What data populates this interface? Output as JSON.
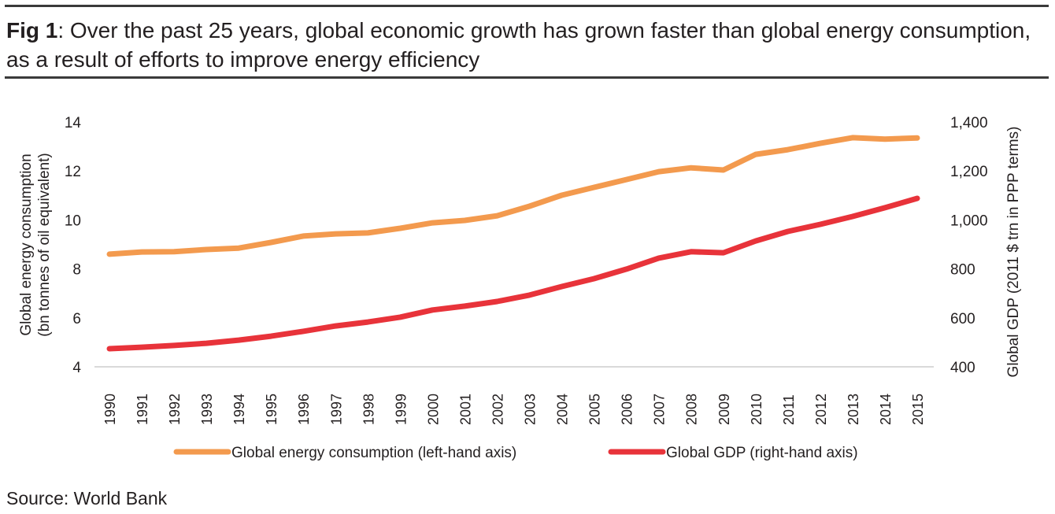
{
  "figure": {
    "label": "Fig 1",
    "title": ": Over the past 25 years, global economic growth has grown faster than global energy consumption, as a result of efforts to improve energy efficiency",
    "source": "Source: World Bank"
  },
  "chart_data": {
    "type": "line",
    "title": "Fig 1: Over the past 25 years, global economic growth has grown faster than global energy consumption, as a result of efforts to improve energy efficiency",
    "xlabel": "",
    "ylabel": "Global energy consumption (bn tonnes of oil equivalent)",
    "y2label": "Global GDP (2011 $ trn in PPP terms)",
    "ylim": [
      4,
      14
    ],
    "y2lim": [
      400,
      1400
    ],
    "yticks": [
      "4",
      "6",
      "8",
      "10",
      "12",
      "14"
    ],
    "y2ticks": [
      "400",
      "600",
      "800",
      "1,000",
      "1,200",
      "1,400"
    ],
    "grid": false,
    "legend_position": "bottom",
    "categories": [
      "1990",
      "1991",
      "1992",
      "1993",
      "1994",
      "1995",
      "1996",
      "1997",
      "1998",
      "1999",
      "2000",
      "2001",
      "2002",
      "2003",
      "2004",
      "2005",
      "2006",
      "2007",
      "2008",
      "2009",
      "2010",
      "2011",
      "2012",
      "2013",
      "2014",
      "2015"
    ],
    "series": [
      {
        "name": "Global energy consumption (left-hand axis)",
        "axis": "left",
        "color": "#f39a4e",
        "values": [
          8.6,
          8.69,
          8.7,
          8.79,
          8.85,
          9.08,
          9.34,
          9.43,
          9.47,
          9.66,
          9.88,
          9.98,
          10.17,
          10.56,
          11.01,
          11.33,
          11.65,
          11.97,
          12.13,
          12.04,
          12.68,
          12.87,
          13.13,
          13.36,
          13.3,
          13.35
        ]
      },
      {
        "name": "Global GDP (right-hand axis)",
        "axis": "right",
        "color": "#e8333a",
        "values": [
          474,
          480,
          487,
          496,
          509,
          525,
          545,
          567,
          583,
          603,
          632,
          648,
          667,
          693,
          728,
          760,
          799,
          844,
          870,
          866,
          914,
          953,
          982,
          1014,
          1050,
          1088
        ]
      }
    ]
  }
}
